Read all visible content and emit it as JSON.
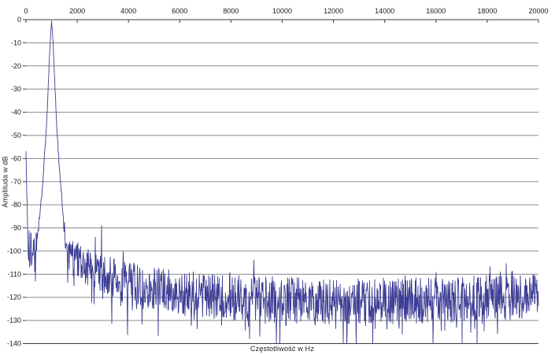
{
  "page": {
    "background_color": "#ffffff"
  },
  "chart_data": {
    "type": "line",
    "title": "",
    "xlabel": "Częstotliwość w Hz",
    "ylabel": "Amplituda w dB",
    "xlim": [
      0,
      20000
    ],
    "ylim": [
      -140,
      0
    ],
    "x_ticks": [
      0,
      2000,
      4000,
      6000,
      8000,
      10000,
      12000,
      14000,
      16000,
      18000,
      20000
    ],
    "y_ticks": [
      0,
      -10,
      -20,
      -30,
      -40,
      -50,
      -60,
      -70,
      -80,
      -90,
      -100,
      -110,
      -120,
      -130,
      -140
    ],
    "grid": "horizontal-only",
    "legend_position": "none",
    "x_axis_position": "top",
    "line_color": "#3e3e96",
    "grid_color": "#8a8a8a",
    "axis_color": "#3c3c3c",
    "text_color": "#1a1a1a",
    "peak": {
      "frequency_hz": 1000,
      "amplitude_db": -0.5
    },
    "dc_spike": {
      "frequency_hz": 0,
      "amplitude_db": -57
    },
    "noise_floor_db": {
      "near_2000_hz": -104,
      "near_4000_hz": -114,
      "above_8000_hz": -120,
      "min_db": -140,
      "typical_top_db": -106
    },
    "envelope_points": [
      [
        0,
        -57
      ],
      [
        40,
        -80
      ],
      [
        90,
        -99
      ],
      [
        250,
        -101
      ],
      [
        420,
        -99
      ],
      [
        470,
        -94
      ],
      [
        520,
        -88
      ],
      [
        600,
        -78
      ],
      [
        700,
        -63
      ],
      [
        800,
        -46
      ],
      [
        880,
        -26
      ],
      [
        940,
        -10
      ],
      [
        1000,
        -1
      ],
      [
        1060,
        -10
      ],
      [
        1120,
        -26
      ],
      [
        1200,
        -46
      ],
      [
        1300,
        -63
      ],
      [
        1400,
        -78
      ],
      [
        1480,
        -88
      ],
      [
        1540,
        -95
      ],
      [
        1650,
        -101
      ],
      [
        2000,
        -104
      ],
      [
        2600,
        -108
      ],
      [
        3200,
        -111
      ],
      [
        4000,
        -114
      ],
      [
        5000,
        -116
      ],
      [
        6000,
        -118
      ],
      [
        8000,
        -120
      ],
      [
        10000,
        -121
      ],
      [
        13000,
        -122
      ],
      [
        16000,
        -121
      ],
      [
        20000,
        -120
      ]
    ],
    "jitter_points": [
      [
        0,
        2
      ],
      [
        60,
        8
      ],
      [
        150,
        9
      ],
      [
        420,
        9
      ],
      [
        500,
        5
      ],
      [
        560,
        2
      ],
      [
        940,
        1
      ],
      [
        1060,
        1
      ],
      [
        1440,
        2
      ],
      [
        1520,
        5
      ],
      [
        1620,
        8
      ],
      [
        2000,
        8
      ],
      [
        3000,
        9
      ],
      [
        5000,
        9
      ],
      [
        8000,
        10
      ],
      [
        20000,
        10
      ]
    ],
    "notable_spikes": [
      {
        "frequency_hz": 2700,
        "amplitude_db": -94
      },
      {
        "frequency_hz": 2950,
        "amplitude_db": -89
      },
      {
        "frequency_hz": 8900,
        "amplitude_db": -104
      }
    ],
    "random_seed": 20,
    "points_per_pixel": 2
  }
}
